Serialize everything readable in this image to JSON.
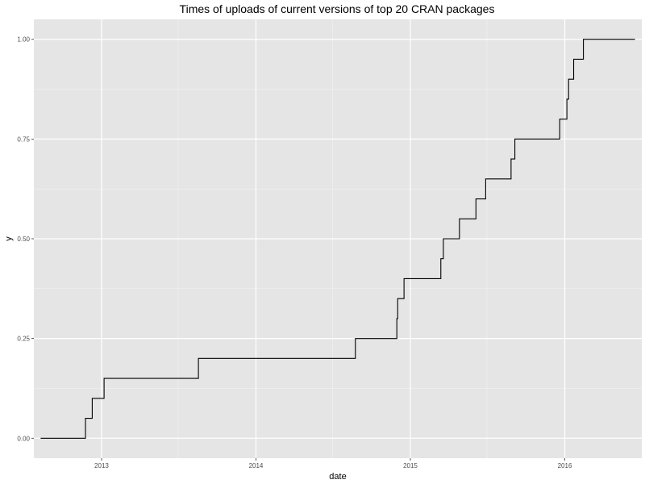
{
  "chart_data": {
    "type": "line",
    "subtype": "step",
    "title": "Times of uploads of current versions of top 20 CRAN packages",
    "xlabel": "date",
    "ylabel": "y",
    "x_ticks": [
      "2013",
      "2014",
      "2015",
      "2016"
    ],
    "y_ticks": [
      "0.00",
      "0.25",
      "0.50",
      "0.75",
      "1.00"
    ],
    "xlim": [
      "2012-07-25",
      "2016-07-01"
    ],
    "ylim": [
      -0.05,
      1.05
    ],
    "grid": true,
    "colors": {
      "panel_background": "#e5e5e5",
      "grid_major": "#ffffff",
      "grid_minor": "#f2f2f2",
      "line": "#000000",
      "tick_text": "#4d4d4d"
    },
    "series": [
      {
        "points": [
          {
            "x": "2012-08-10",
            "y": 0.0
          },
          {
            "x": "2012-11-24",
            "y": 0.05
          },
          {
            "x": "2012-12-10",
            "y": 0.1
          },
          {
            "x": "2013-01-07",
            "y": 0.15
          },
          {
            "x": "2013-08-18",
            "y": 0.2
          },
          {
            "x": "2014-08-24",
            "y": 0.25
          },
          {
            "x": "2014-11-30",
            "y": 0.3
          },
          {
            "x": "2014-12-02",
            "y": 0.35
          },
          {
            "x": "2014-12-17",
            "y": 0.4
          },
          {
            "x": "2015-03-14",
            "y": 0.45
          },
          {
            "x": "2015-03-20",
            "y": 0.5
          },
          {
            "x": "2015-04-27",
            "y": 0.55
          },
          {
            "x": "2015-06-05",
            "y": 0.6
          },
          {
            "x": "2015-06-28",
            "y": 0.65
          },
          {
            "x": "2015-08-27",
            "y": 0.7
          },
          {
            "x": "2015-09-05",
            "y": 0.75
          },
          {
            "x": "2015-12-20",
            "y": 0.8
          },
          {
            "x": "2016-01-06",
            "y": 0.85
          },
          {
            "x": "2016-01-10",
            "y": 0.9
          },
          {
            "x": "2016-01-22",
            "y": 0.95
          },
          {
            "x": "2016-02-14",
            "y": 1.0
          },
          {
            "x": "2016-06-15",
            "y": 1.0
          }
        ]
      }
    ]
  }
}
